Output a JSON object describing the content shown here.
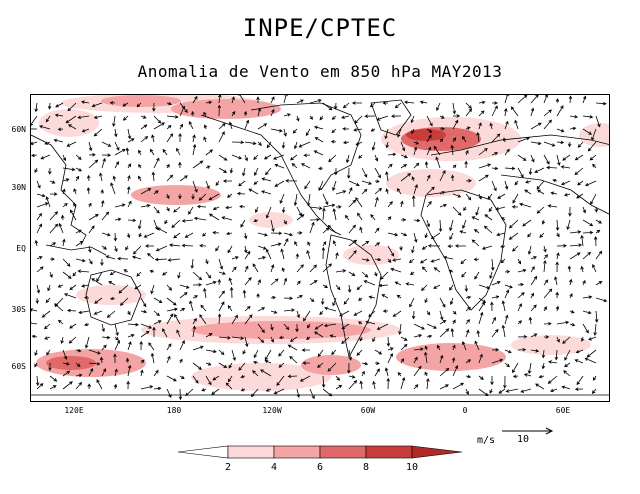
{
  "title": "INPE/CPTEC",
  "subtitle": "Anomalia de Vento em 850 hPa MAY2013",
  "map": {
    "lat_labels": [
      "60N",
      "30N",
      "EQ",
      "30S",
      "60S"
    ],
    "lon_labels": [
      "120E",
      "180",
      "120W",
      "60W",
      "0",
      "60E"
    ],
    "shading_colors": [
      "#ffffff",
      "#fddada",
      "#f4a4a4",
      "#e06a6a",
      "#c83c3c",
      "#b02828"
    ]
  },
  "reference_vector": {
    "units": "m/s",
    "value": "10"
  },
  "colorbar": {
    "labels": [
      "2",
      "4",
      "6",
      "8",
      "10"
    ],
    "colors": [
      "#ffffff",
      "#fddada",
      "#f4a4a4",
      "#e06a6a",
      "#c83c3c",
      "#b02828"
    ]
  }
}
